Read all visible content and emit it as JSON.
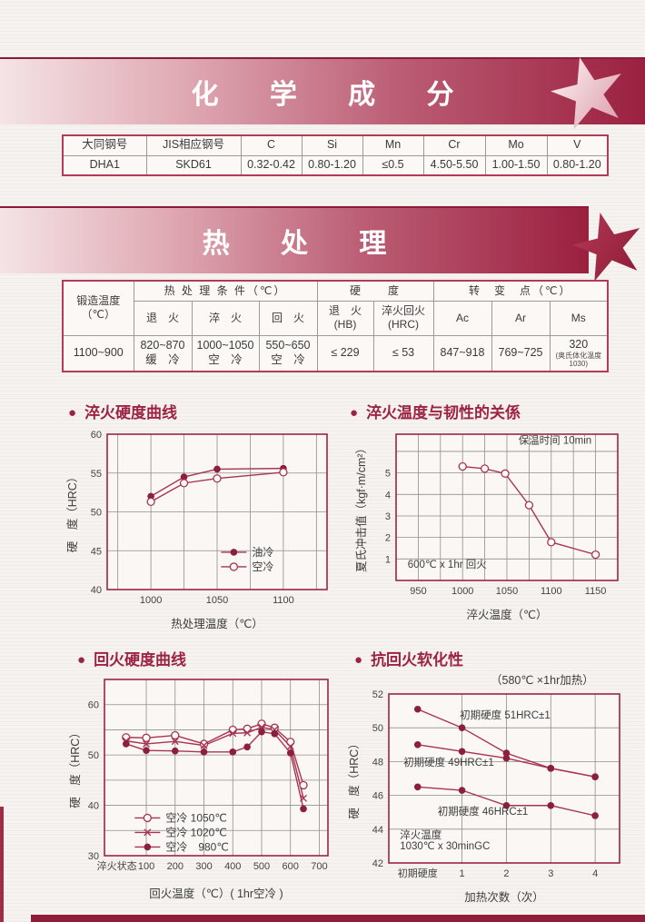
{
  "banners": [
    {
      "title": "化 学 成 分"
    },
    {
      "title": "热 处 理"
    }
  ],
  "chem_table": {
    "headers": [
      "大同钢号",
      "JIS相应钢号",
      "C",
      "Si",
      "Mn",
      "Cr",
      "Mo",
      "V"
    ],
    "row": [
      "DHA1",
      "SKD61",
      "0.32-0.42",
      "0.80-1.20",
      "≤0.5",
      "4.50-5.50",
      "1.00-1.50",
      "0.80-1.20"
    ]
  },
  "heat_table": {
    "forge_header": "锻造温度\n（℃）",
    "groups": [
      "热 处 理 条 件（℃）",
      "硬　　度",
      "转　变　点（℃）"
    ],
    "subs": [
      "退　火",
      "淬　火",
      "回　火",
      "退　火\n(HB)",
      "淬火回火\n(HRC)",
      "Ac",
      "Ar",
      "Ms"
    ],
    "row": [
      "1100~900",
      "820~870\n缓　冷",
      "1000~1050\n空　冷",
      "550~650\n空　冷",
      "≤ 229",
      "≤ 53",
      "847~918",
      "769~725"
    ],
    "ms_main": "320",
    "ms_note": "(奥氏体化温度\n1030)"
  },
  "sections": [
    {
      "title": "淬火硬度曲线"
    },
    {
      "title": "淬火温度与韧性的关係"
    },
    {
      "title": "回火硬度曲线"
    },
    {
      "title": "抗回火软化性",
      "subtitle": "（580℃ ×1hr加热）"
    }
  ],
  "colors": {
    "accent": "#9e2444",
    "line": "#a83450",
    "marker_dark": "#8c1f3a",
    "grid": "#8f8f8f",
    "plot_bg": "#faf7f5",
    "banner_dark": "#9b2040",
    "banner_light": "#f4e4e6"
  },
  "chart_data": [
    {
      "type": "line",
      "title": "淬火硬度曲线",
      "xlabel": "热处理温度（℃）",
      "ylabel": "硬　度（HRC）",
      "xlim": [
        967,
        1133
      ],
      "ylim": [
        40,
        60
      ],
      "xgrid": [
        975,
        1000,
        1025,
        1050,
        1075,
        1100,
        1125
      ],
      "ygrid": [
        45,
        50,
        55
      ],
      "xticks": [
        {
          "v": 1000,
          "t": "1000"
        },
        {
          "v": 1050,
          "t": "1050"
        },
        {
          "v": 1100,
          "t": "1100"
        }
      ],
      "yticks": [
        {
          "v": 40,
          "t": "40"
        },
        {
          "v": 45,
          "t": "45"
        },
        {
          "v": 50,
          "t": "50"
        },
        {
          "v": 55,
          "t": "55"
        },
        {
          "v": 60,
          "t": "60"
        }
      ],
      "series": [
        {
          "name": "油冷",
          "marker": "filled",
          "x": [
            1000,
            1025,
            1050,
            1100
          ],
          "y": [
            52.0,
            54.5,
            55.5,
            55.6
          ]
        },
        {
          "name": "空冷",
          "marker": "open",
          "x": [
            1000,
            1025,
            1050,
            1100
          ],
          "y": [
            51.3,
            53.7,
            54.3,
            55.1
          ]
        }
      ],
      "legend": {
        "anchor": [
          1053,
          44.8
        ]
      },
      "size": [
        300,
        225
      ],
      "margin": [
        46,
        12,
        8,
        46
      ]
    },
    {
      "type": "line",
      "title": "淬火温度与韧性的关係",
      "xlabel": "淬火温度（℃）",
      "ylabel": "夏氏冲击值（kgf·m/cm²）",
      "xlim": [
        925,
        1175
      ],
      "ylim": [
        0,
        6.8
      ],
      "xgrid": [
        950,
        975,
        1000,
        1025,
        1050,
        1075,
        1100,
        1125,
        1150
      ],
      "ygrid": [
        1,
        2,
        3,
        4,
        5,
        6
      ],
      "xticks": [
        {
          "v": 950,
          "t": "950"
        },
        {
          "v": 1000,
          "t": "1000"
        },
        {
          "v": 1050,
          "t": "1050"
        },
        {
          "v": 1100,
          "t": "1100"
        },
        {
          "v": 1150,
          "t": "1150"
        }
      ],
      "yticks": [
        {
          "v": 1,
          "t": "1"
        },
        {
          "v": 2,
          "t": "2"
        },
        {
          "v": 3,
          "t": "3"
        },
        {
          "v": 4,
          "t": "4"
        },
        {
          "v": 5,
          "t": "5"
        }
      ],
      "series": [
        {
          "name": "",
          "marker": "open",
          "x": [
            1000,
            1025,
            1048,
            1075,
            1100,
            1150
          ],
          "y": [
            5.3,
            5.2,
            4.97,
            3.5,
            1.78,
            1.2
          ]
        }
      ],
      "annotations": [
        {
          "t": "保温时间 10min",
          "x": 1063,
          "y": 6.35,
          "anchor": "start"
        },
        {
          "t": "600℃ x 1hr 回火",
          "x": 938,
          "y": 0.6,
          "anchor": "start"
        }
      ],
      "size": [
        300,
        215
      ],
      "margin": [
        46,
        10,
        8,
        46
      ]
    },
    {
      "type": "line",
      "title": "回火硬度曲线",
      "xlabel": "回火温度（℃）( 1hr空冷 )",
      "ylabel": "硬　度（HRC）",
      "xlim": [
        -45,
        730
      ],
      "ylim": [
        30,
        65
      ],
      "xgrid": [
        100,
        200,
        300,
        400,
        500,
        600,
        700
      ],
      "ygrid": [
        35,
        40,
        45,
        50,
        55,
        60
      ],
      "xticks": [
        {
          "v": -2,
          "t": "淬火状态"
        },
        {
          "v": 100,
          "t": "100"
        },
        {
          "v": 200,
          "t": "200"
        },
        {
          "v": 300,
          "t": "300"
        },
        {
          "v": 400,
          "t": "400"
        },
        {
          "v": 500,
          "t": "500"
        },
        {
          "v": 600,
          "t": "600"
        },
        {
          "v": 700,
          "t": "700"
        }
      ],
      "yticks": [
        {
          "v": 30,
          "t": "30"
        },
        {
          "v": 40,
          "t": "40"
        },
        {
          "v": 50,
          "t": "50"
        },
        {
          "v": 60,
          "t": "60"
        }
      ],
      "series": [
        {
          "name": "空冷 1050℃",
          "marker": "open",
          "x": [
            30,
            100,
            200,
            300,
            400,
            450,
            500,
            545,
            600,
            645
          ],
          "y": [
            53.5,
            53.4,
            53.9,
            52.2,
            55.0,
            55.2,
            56.2,
            55.4,
            52.6,
            44.0
          ]
        },
        {
          "name": "空冷 1020℃",
          "marker": "x",
          "x": [
            30,
            100,
            200,
            300,
            400,
            450,
            500,
            545,
            600,
            645
          ],
          "y": [
            52.8,
            52.2,
            52.7,
            51.9,
            54.3,
            54.4,
            55.5,
            55.0,
            51.7,
            41.4
          ]
        },
        {
          "name": "空冷　980℃",
          "marker": "filled",
          "x": [
            30,
            100,
            200,
            300,
            400,
            450,
            500,
            545,
            600,
            645
          ],
          "y": [
            52.2,
            50.9,
            50.8,
            50.6,
            50.6,
            51.6,
            54.6,
            54.2,
            50.4,
            39.3
          ]
        }
      ],
      "legend": {
        "anchor": [
          60,
          37.5
        ]
      },
      "size": [
        300,
        252
      ],
      "margin": [
        40,
        14,
        8,
        50
      ]
    },
    {
      "type": "line",
      "title": "抗回火软化性",
      "subtitle": "（580℃ ×1hr加热）",
      "xlabel": "加热次数（次）",
      "ylabel": "硬　度（HRC）",
      "xlim": [
        -0.65,
        4.55
      ],
      "ylim": [
        42,
        52
      ],
      "xgrid": [
        1,
        2,
        3,
        4
      ],
      "ygrid": [
        44,
        46,
        48,
        50
      ],
      "xticks": [
        {
          "v": 0,
          "t": "初期硬度"
        },
        {
          "v": 1,
          "t": "1"
        },
        {
          "v": 2,
          "t": "2"
        },
        {
          "v": 3,
          "t": "3"
        },
        {
          "v": 4,
          "t": "4"
        }
      ],
      "yticks": [
        {
          "v": 42,
          "t": "42"
        },
        {
          "v": 44,
          "t": "44"
        },
        {
          "v": 46,
          "t": "46"
        },
        {
          "v": 48,
          "t": "48"
        },
        {
          "v": 50,
          "t": "50"
        },
        {
          "v": 52,
          "t": "52"
        }
      ],
      "series": [
        {
          "name": "初期硬度 51HRC±1",
          "marker": "filled",
          "x": [
            0,
            1,
            2,
            3,
            4
          ],
          "y": [
            51.1,
            50.0,
            48.5,
            47.6,
            47.1
          ]
        },
        {
          "name": "初期硬度 49HRC±1",
          "marker": "filled",
          "x": [
            0,
            1,
            2,
            3,
            4
          ],
          "y": [
            49.0,
            48.6,
            48.2,
            47.6,
            47.1
          ]
        },
        {
          "name": "初期硬度 46HRC±1",
          "marker": "filled",
          "x": [
            0,
            1,
            2,
            3,
            4
          ],
          "y": [
            46.5,
            46.3,
            45.4,
            45.4,
            44.8
          ]
        }
      ],
      "annotations": [
        {
          "t": "初期硬度 51HRC±1",
          "x": 0.95,
          "y": 50.55,
          "anchor": "start"
        },
        {
          "t": "初期硬度 49HRC±1",
          "x": -0.32,
          "y": 47.75,
          "anchor": "start"
        },
        {
          "t": "初期硬度 46HRC±1",
          "x": 0.45,
          "y": 44.85,
          "anchor": "start"
        },
        {
          "t": "淬火温度",
          "x": -0.4,
          "y": 43.45,
          "anchor": "start"
        },
        {
          "t": "1030℃ x 30minGC",
          "x": -0.4,
          "y": 42.8,
          "anchor": "start"
        }
      ],
      "size": [
        312,
        240
      ],
      "margin": [
        46,
        12,
        8,
        46
      ]
    }
  ]
}
